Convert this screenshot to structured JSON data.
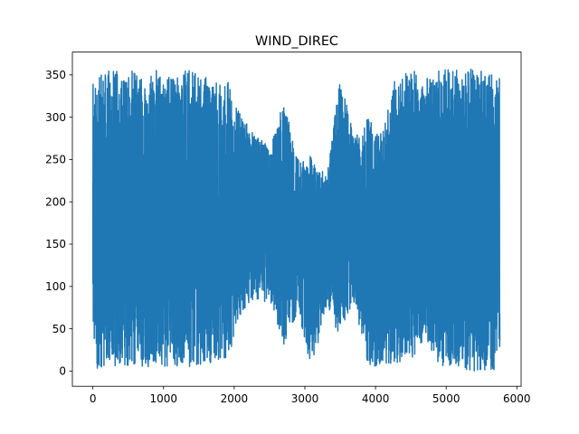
{
  "chart_data": {
    "type": "line",
    "title": "WIND_DIREC",
    "xlabel": "",
    "ylabel": "",
    "xlim": [
      -290,
      6060
    ],
    "ylim": [
      -18,
      377
    ],
    "xticks": [
      0,
      1000,
      2000,
      3000,
      4000,
      5000,
      6000
    ],
    "yticks": [
      0,
      50,
      100,
      150,
      200,
      250,
      300,
      350
    ],
    "grid": false,
    "legend": "none",
    "series_color": "#1f77b4",
    "n_points": 5760,
    "envelope": {
      "x": [
        0,
        200,
        500,
        800,
        1100,
        1400,
        1700,
        1900,
        2100,
        2300,
        2500,
        2700,
        2900,
        3100,
        3300,
        3500,
        3700,
        3900,
        4100,
        4300,
        4500,
        4700,
        4900,
        5100,
        5300,
        5500,
        5760
      ],
      "max": [
        340,
        358,
        355,
        356,
        358,
        355,
        345,
        345,
        300,
        280,
        265,
        320,
        250,
        255,
        230,
        345,
        280,
        300,
        280,
        355,
        358,
        345,
        355,
        358,
        358,
        355,
        350
      ],
      "min": [
        0,
        5,
        5,
        5,
        5,
        5,
        10,
        10,
        70,
        85,
        80,
        30,
        70,
        0,
        75,
        40,
        80,
        5,
        5,
        10,
        10,
        40,
        5,
        5,
        0,
        0,
        0
      ]
    }
  }
}
